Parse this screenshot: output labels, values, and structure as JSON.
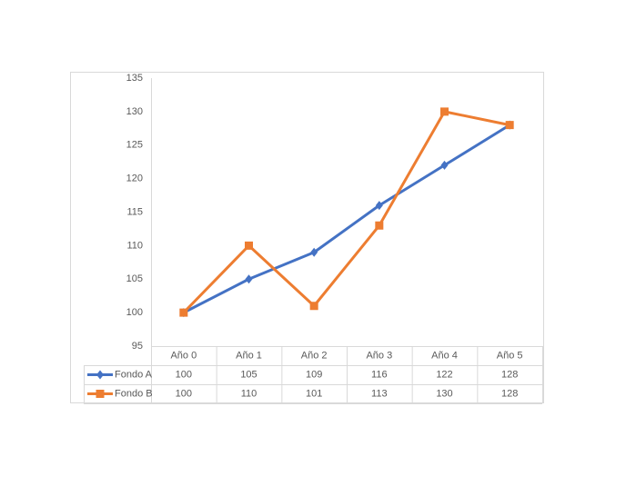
{
  "chart_data": {
    "type": "line",
    "categories": [
      "Año 0",
      "Año 1",
      "Año 2",
      "Año 3",
      "Año 4",
      "Año 5"
    ],
    "series": [
      {
        "name": "Fondo A",
        "color": "#4472c4",
        "marker": "diamond",
        "values": [
          100,
          105,
          109,
          116,
          122,
          128
        ]
      },
      {
        "name": "Fondo B",
        "color": "#ed7d31",
        "marker": "square",
        "values": [
          100,
          110,
          101,
          113,
          130,
          128
        ]
      }
    ],
    "ylim": [
      95,
      135
    ],
    "yticks": [
      95,
      100,
      105,
      110,
      115,
      120,
      125,
      130,
      135
    ],
    "grid": false,
    "data_table": true
  }
}
